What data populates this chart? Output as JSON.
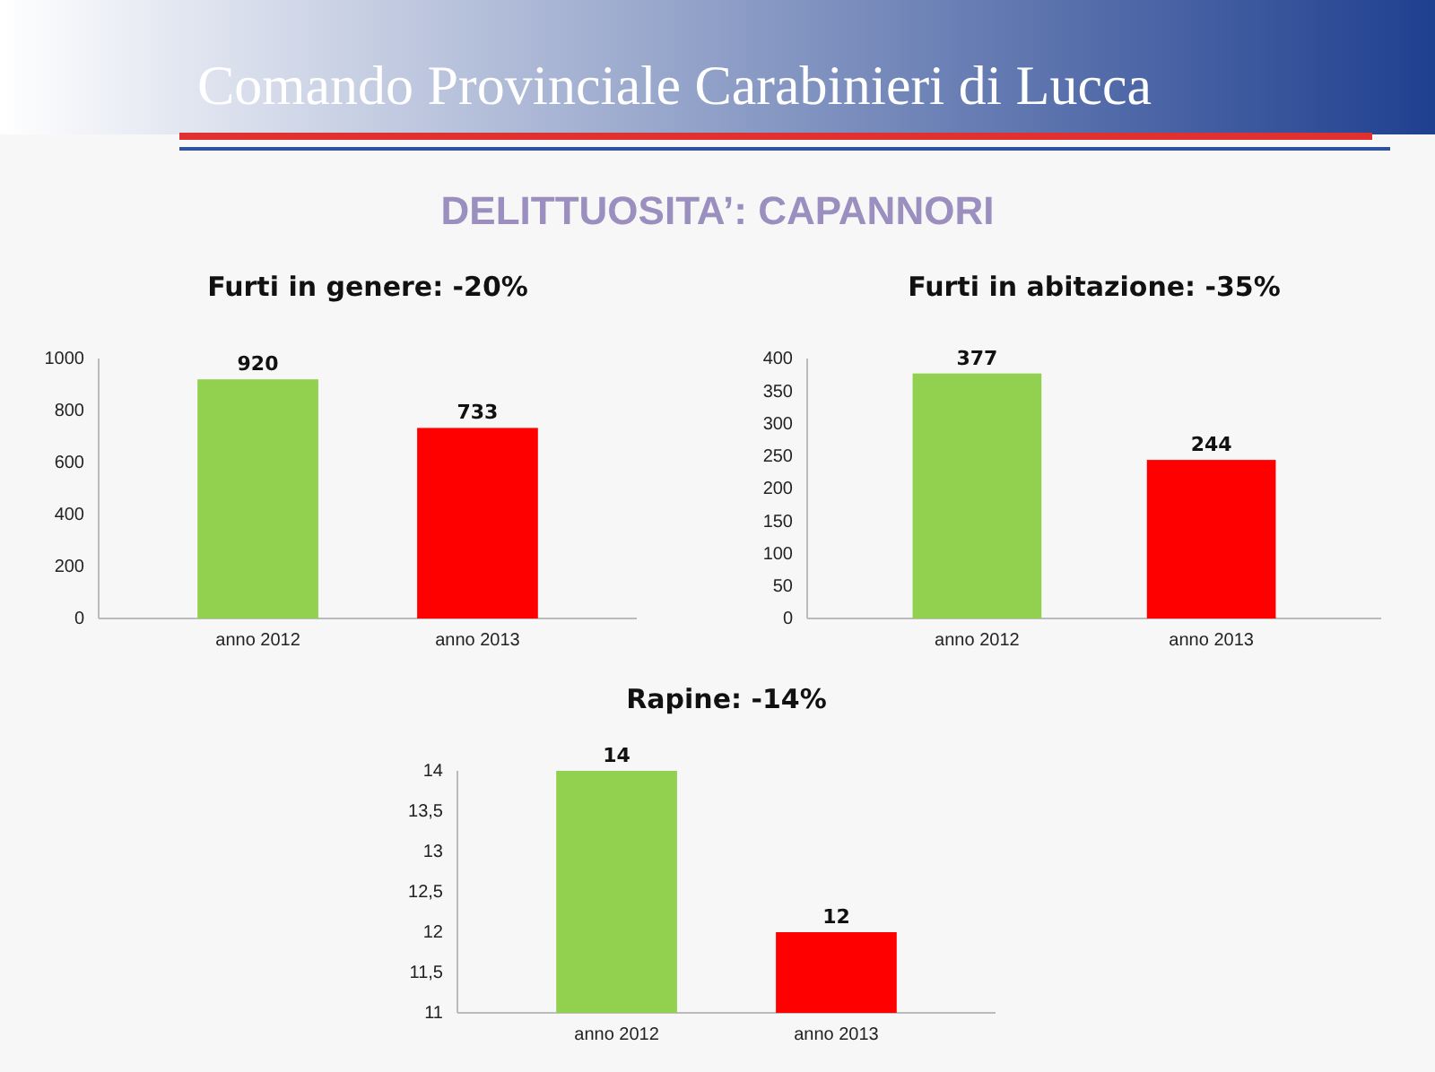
{
  "chart_data": [
    {
      "type": "other",
      "title": "Comando Provinciale Carabinieri di Lucca",
      "subtitle": "DELITTUOSITA’: CAPANNORI"
    },
    {
      "type": "bar",
      "title": "Furti in genere: -20%",
      "categories": [
        "anno 2012",
        "anno 2013"
      ],
      "values": [
        920,
        733
      ],
      "colors": [
        "#92d050",
        "#ff0000"
      ],
      "ylim": [
        0,
        1000
      ],
      "yticks": [
        0,
        200,
        400,
        600,
        800,
        1000
      ],
      "data_labels": true
    },
    {
      "type": "bar",
      "title": "Furti in abitazione: -35%",
      "categories": [
        "anno 2012",
        "anno 2013"
      ],
      "values": [
        377,
        244
      ],
      "colors": [
        "#92d050",
        "#ff0000"
      ],
      "ylim": [
        0,
        400
      ],
      "yticks": [
        0,
        50,
        100,
        150,
        200,
        250,
        300,
        350,
        400
      ],
      "data_labels": true
    },
    {
      "type": "bar",
      "title": "Rapine: -14%",
      "categories": [
        "anno 2012",
        "anno 2013"
      ],
      "values": [
        14,
        12
      ],
      "colors": [
        "#92d050",
        "#ff0000"
      ],
      "ylim": [
        11,
        14
      ],
      "yticks": [
        11,
        {
          "value": 11.5,
          "label": "11,5"
        },
        12,
        {
          "value": 12.5,
          "label": "12,5"
        },
        13,
        {
          "value": 13.5,
          "label": "13,5"
        },
        14
      ],
      "data_labels": true
    }
  ]
}
